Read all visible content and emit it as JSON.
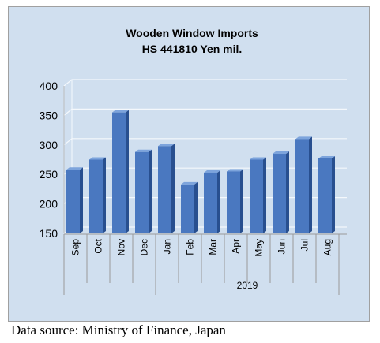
{
  "chart_data": {
    "type": "bar",
    "title": "Wooden Window Imports",
    "subtitle": "HS 441810 Yen mil.",
    "categories": [
      "Sep",
      "Oct",
      "Nov",
      "Dec",
      "Jan",
      "Feb",
      "Mar",
      "Apr",
      "May",
      "Jun",
      "Jul",
      "Aug"
    ],
    "values": [
      258,
      275,
      355,
      288,
      298,
      233,
      253,
      255,
      275,
      285,
      310,
      277
    ],
    "year_group": {
      "label": "2019",
      "from_category": "Jan"
    },
    "ylim": [
      150,
      400
    ],
    "yticks": [
      "150",
      "200",
      "250",
      "300",
      "350",
      "400"
    ],
    "grid": true,
    "three_d": true,
    "colors": {
      "bar_front": "#4a78c0",
      "bar_side": "#284f8f",
      "bar_top": "#7da4dc",
      "plot_background": "#d0dfef",
      "grid": "#f4f8fc"
    }
  },
  "source_note": "Data source: Ministry of Finance, Japan"
}
